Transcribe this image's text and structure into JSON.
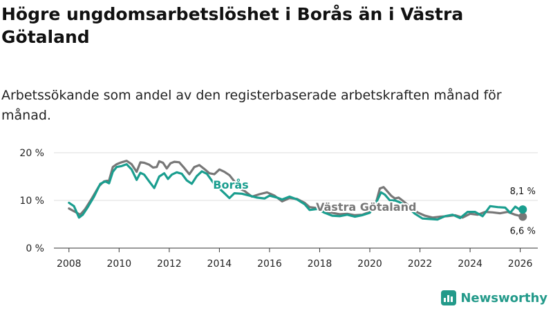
{
  "header": {
    "title": "Högre ungdomsarbetslöshet i Borås än i Västra Götaland",
    "subtitle": "Arbetssökande som andel av den registerbaserade arbetskraften månad för månad."
  },
  "brand": {
    "name": "Newsworthy",
    "color": "#239a8a"
  },
  "chart_data": {
    "type": "line",
    "title": "Högre ungdomsarbetslöshet i Borås än i Västra Götaland",
    "subtitle": "Arbetssökande som andel av den registerbaserade arbetskraften månad för månad.",
    "xlabel": "",
    "ylabel": "",
    "xlim": [
      2007.4,
      2026.7
    ],
    "ylim": [
      0,
      20
    ],
    "yticks": [
      0,
      10,
      20
    ],
    "ytick_labels": [
      "0 %",
      "10 %",
      "20 %"
    ],
    "xticks": [
      2008,
      2010,
      2012,
      2014,
      2016,
      2018,
      2020,
      2022,
      2024,
      2026
    ],
    "xtick_labels": [
      "2008",
      "2010",
      "2012",
      "2014",
      "2016",
      "2018",
      "2020",
      "2022",
      "2024",
      "2026"
    ],
    "grid": "horizontal",
    "series": [
      {
        "name": "Västra Götaland",
        "color": "#777777",
        "label": "Västra Götaland",
        "end_label": "6,6 %",
        "points": [
          [
            2008.0,
            8.3
          ],
          [
            2008.25,
            7.6
          ],
          [
            2008.45,
            7.0
          ],
          [
            2008.65,
            8.2
          ],
          [
            2008.9,
            10.3
          ],
          [
            2009.2,
            13.0
          ],
          [
            2009.4,
            14.0
          ],
          [
            2009.6,
            14.2
          ],
          [
            2009.75,
            17.0
          ],
          [
            2009.9,
            17.6
          ],
          [
            2010.1,
            18.0
          ],
          [
            2010.3,
            18.3
          ],
          [
            2010.5,
            17.6
          ],
          [
            2010.7,
            16.0
          ],
          [
            2010.85,
            18.0
          ],
          [
            2011.0,
            17.9
          ],
          [
            2011.2,
            17.5
          ],
          [
            2011.35,
            16.9
          ],
          [
            2011.5,
            17.0
          ],
          [
            2011.6,
            18.2
          ],
          [
            2011.75,
            17.9
          ],
          [
            2011.9,
            16.7
          ],
          [
            2012.05,
            17.8
          ],
          [
            2012.2,
            18.1
          ],
          [
            2012.4,
            18.0
          ],
          [
            2012.6,
            16.8
          ],
          [
            2012.8,
            15.5
          ],
          [
            2013.0,
            17.0
          ],
          [
            2013.2,
            17.4
          ],
          [
            2013.4,
            16.6
          ],
          [
            2013.6,
            15.7
          ],
          [
            2013.8,
            15.5
          ],
          [
            2014.0,
            16.5
          ],
          [
            2014.2,
            16.0
          ],
          [
            2014.4,
            15.3
          ],
          [
            2014.6,
            14.0
          ],
          [
            2014.8,
            12.5
          ],
          [
            2015.0,
            12.0
          ],
          [
            2015.3,
            10.8
          ],
          [
            2015.6,
            11.3
          ],
          [
            2015.9,
            11.7
          ],
          [
            2016.2,
            11.0
          ],
          [
            2016.5,
            9.8
          ],
          [
            2016.8,
            10.5
          ],
          [
            2017.1,
            10.3
          ],
          [
            2017.4,
            9.5
          ],
          [
            2017.6,
            8.6
          ],
          [
            2017.9,
            8.4
          ],
          [
            2018.2,
            7.6
          ],
          [
            2018.5,
            7.4
          ],
          [
            2018.8,
            7.1
          ],
          [
            2019.1,
            7.2
          ],
          [
            2019.4,
            6.9
          ],
          [
            2019.7,
            7.0
          ],
          [
            2020.0,
            7.6
          ],
          [
            2020.25,
            9.6
          ],
          [
            2020.4,
            12.5
          ],
          [
            2020.55,
            12.8
          ],
          [
            2020.7,
            11.9
          ],
          [
            2020.85,
            11.0
          ],
          [
            2021.0,
            10.4
          ],
          [
            2021.15,
            10.6
          ],
          [
            2021.3,
            10.0
          ],
          [
            2021.6,
            8.7
          ],
          [
            2021.9,
            7.5
          ],
          [
            2022.2,
            6.8
          ],
          [
            2022.5,
            6.4
          ],
          [
            2022.8,
            6.6
          ],
          [
            2023.1,
            6.7
          ],
          [
            2023.4,
            6.9
          ],
          [
            2023.7,
            6.4
          ],
          [
            2024.0,
            7.2
          ],
          [
            2024.3,
            7.0
          ],
          [
            2024.6,
            7.6
          ],
          [
            2024.9,
            7.5
          ],
          [
            2025.2,
            7.3
          ],
          [
            2025.5,
            7.6
          ],
          [
            2025.8,
            7.0
          ],
          [
            2026.1,
            6.6
          ]
        ]
      },
      {
        "name": "Borås",
        "color": "#1a9e8f",
        "label": "Borås",
        "end_label": "8,1 %",
        "points": [
          [
            2008.0,
            9.5
          ],
          [
            2008.2,
            8.8
          ],
          [
            2008.4,
            6.4
          ],
          [
            2008.55,
            7.0
          ],
          [
            2008.75,
            8.6
          ],
          [
            2009.0,
            10.8
          ],
          [
            2009.25,
            13.5
          ],
          [
            2009.45,
            14.0
          ],
          [
            2009.6,
            13.6
          ],
          [
            2009.75,
            16.0
          ],
          [
            2009.9,
            17.0
          ],
          [
            2010.1,
            17.2
          ],
          [
            2010.3,
            17.6
          ],
          [
            2010.5,
            16.5
          ],
          [
            2010.7,
            14.3
          ],
          [
            2010.85,
            15.8
          ],
          [
            2011.0,
            15.4
          ],
          [
            2011.2,
            14.0
          ],
          [
            2011.4,
            12.6
          ],
          [
            2011.6,
            15.0
          ],
          [
            2011.8,
            15.7
          ],
          [
            2011.95,
            14.5
          ],
          [
            2012.1,
            15.4
          ],
          [
            2012.3,
            15.9
          ],
          [
            2012.5,
            15.6
          ],
          [
            2012.7,
            14.2
          ],
          [
            2012.9,
            13.5
          ],
          [
            2013.1,
            15.1
          ],
          [
            2013.3,
            16.1
          ],
          [
            2013.5,
            15.6
          ],
          [
            2013.65,
            14.5
          ],
          [
            2013.8,
            13.4
          ],
          [
            2014.0,
            12.5
          ],
          [
            2014.2,
            11.5
          ],
          [
            2014.4,
            10.5
          ],
          [
            2014.6,
            11.5
          ],
          [
            2014.9,
            11.4
          ],
          [
            2015.2,
            11.0
          ],
          [
            2015.5,
            10.6
          ],
          [
            2015.8,
            10.4
          ],
          [
            2016.0,
            11.0
          ],
          [
            2016.3,
            10.6
          ],
          [
            2016.5,
            10.2
          ],
          [
            2016.8,
            10.8
          ],
          [
            2017.1,
            10.2
          ],
          [
            2017.4,
            9.2
          ],
          [
            2017.6,
            8.0
          ],
          [
            2017.9,
            8.2
          ],
          [
            2018.2,
            7.4
          ],
          [
            2018.5,
            6.8
          ],
          [
            2018.8,
            6.7
          ],
          [
            2019.1,
            7.0
          ],
          [
            2019.4,
            6.6
          ],
          [
            2019.7,
            6.9
          ],
          [
            2020.0,
            7.4
          ],
          [
            2020.25,
            9.5
          ],
          [
            2020.45,
            11.7
          ],
          [
            2020.6,
            11.2
          ],
          [
            2020.8,
            10.0
          ],
          [
            2021.0,
            10.0
          ],
          [
            2021.2,
            9.6
          ],
          [
            2021.5,
            8.6
          ],
          [
            2021.8,
            7.2
          ],
          [
            2022.1,
            6.2
          ],
          [
            2022.4,
            6.1
          ],
          [
            2022.7,
            6.0
          ],
          [
            2023.0,
            6.7
          ],
          [
            2023.3,
            7.0
          ],
          [
            2023.6,
            6.3
          ],
          [
            2023.9,
            7.6
          ],
          [
            2024.2,
            7.6
          ],
          [
            2024.5,
            6.7
          ],
          [
            2024.8,
            8.8
          ],
          [
            2025.1,
            8.6
          ],
          [
            2025.4,
            8.5
          ],
          [
            2025.6,
            7.4
          ],
          [
            2025.8,
            8.7
          ],
          [
            2026.0,
            8.0
          ],
          [
            2026.1,
            8.1
          ]
        ]
      }
    ]
  }
}
